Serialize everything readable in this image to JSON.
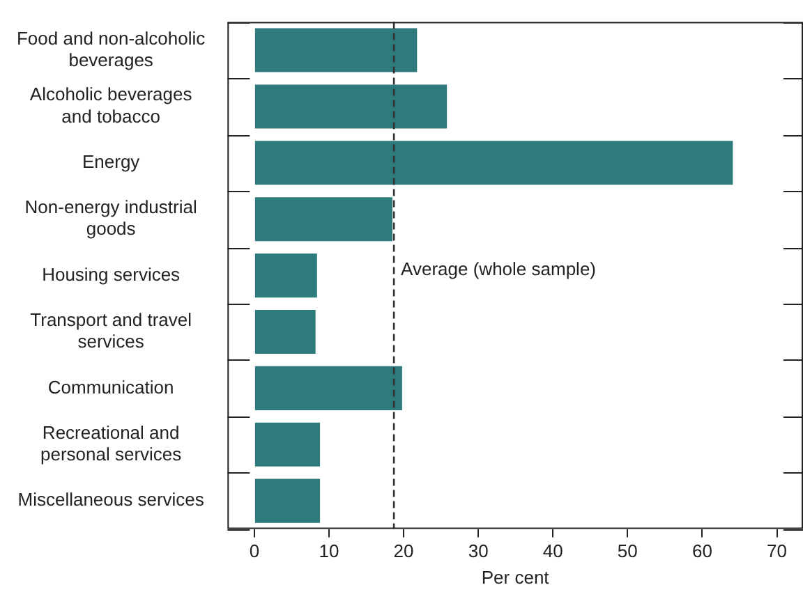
{
  "chart_data": {
    "type": "bar",
    "orientation": "horizontal",
    "xlabel": "Per cent",
    "categories": [
      "Food and non-alcoholic beverages",
      "Alcoholic beverages and tobacco",
      "Energy",
      "Non-energy industrial goods",
      "Housing services",
      "Transport and travel services",
      "Communication",
      "Recreational and personal services",
      "Miscellaneous services"
    ],
    "values": [
      21.8,
      25.8,
      64.1,
      18.5,
      8.4,
      8.2,
      19.8,
      8.8,
      8.8
    ],
    "color": "#2e7b7d",
    "xlim": [
      -3.6,
      73.5
    ],
    "xticks": [
      0,
      10,
      20,
      30,
      40,
      50,
      60,
      70
    ],
    "ref_lines": [
      {
        "axis": "x",
        "value": 18.7,
        "label": "Average (whole sample)",
        "line_style": "dashed",
        "color": "#333333"
      }
    ],
    "grid": false,
    "legend": false
  }
}
